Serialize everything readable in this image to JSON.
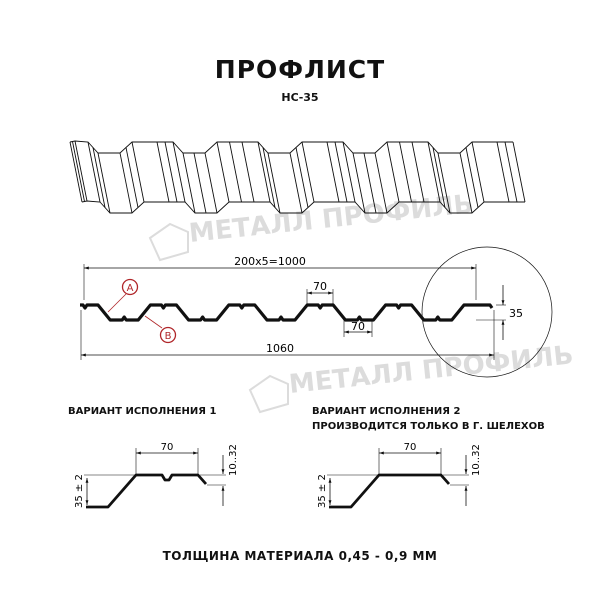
{
  "header": {
    "title": "ПРОФЛИСТ",
    "subtitle": "НС-35"
  },
  "watermark": "МЕТАЛЛ ПРОФИЛЬ",
  "profile": {
    "dim_total": "200x5=1000",
    "dim_width": "1060",
    "dim_top": "70",
    "dim_bottom": "70",
    "dim_height": "35",
    "marker_a": "A",
    "marker_b": "B"
  },
  "variants": [
    {
      "title": "ВАРИАНТ ИСПОЛНЕНИЯ 1",
      "note": "",
      "dim_width": "70",
      "dim_height": "35 ± 2",
      "dim_edge": "10..32"
    },
    {
      "title": "ВАРИАНТ ИСПОЛНЕНИЯ 2",
      "note": "ПРОИЗВОДИТСЯ ТОЛЬКО В Г. ШЕЛЕХОВ",
      "dim_width": "70",
      "dim_height": "35 ± 2",
      "dim_edge": "10..32"
    }
  ],
  "footer": "ТОЛЩИНА МАТЕРИАЛА 0,45 - 0,9 ММ",
  "colors": {
    "ink": "#111111",
    "marker": "#b0262a",
    "watermark": "#dddddd"
  }
}
